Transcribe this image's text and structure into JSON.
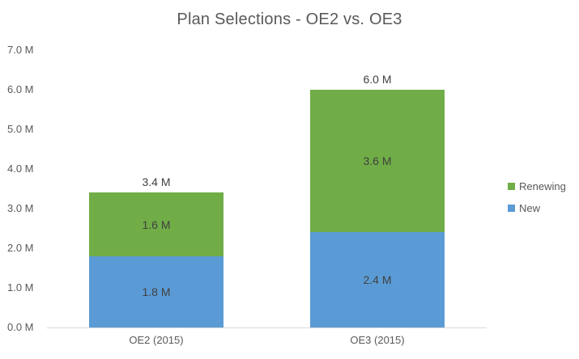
{
  "chart_data": {
    "type": "bar",
    "variant": "stacked-column",
    "title": "Plan Selections - OE2 vs. OE3",
    "categories": [
      "OE2 (2015)",
      "OE3 (2015)"
    ],
    "series": [
      {
        "name": "New",
        "color": "#5B9BD5",
        "values": [
          1.8,
          2.4
        ],
        "data_labels": [
          "1.8 M",
          "2.4 M"
        ]
      },
      {
        "name": "Renewing",
        "color": "#70AD47",
        "values": [
          1.6,
          3.6
        ],
        "data_labels": [
          "1.6 M",
          "3.6 M"
        ]
      }
    ],
    "totals": [
      3.4,
      6.0
    ],
    "total_labels": [
      "3.4 M",
      "6.0 M"
    ],
    "xlabel": "",
    "ylabel": "",
    "ylim": [
      0,
      7
    ],
    "y_ticks": [
      {
        "value": 7,
        "label": "7.0 M"
      },
      {
        "value": 6,
        "label": "6.0 M"
      },
      {
        "value": 5,
        "label": "5.0 M"
      },
      {
        "value": 4,
        "label": "4.0 M"
      },
      {
        "value": 3,
        "label": "3.0 M"
      },
      {
        "value": 2,
        "label": "2.0 M"
      },
      {
        "value": 1,
        "label": "1.0 M"
      },
      {
        "value": 0,
        "label": "0.0 M"
      }
    ],
    "grid": false,
    "legend": {
      "position": "right",
      "entries": [
        {
          "label": "Renewing",
          "color": "#70AD47"
        },
        {
          "label": "New",
          "color": "#5B9BD5"
        }
      ]
    },
    "colors": {
      "title_text": "#595959",
      "axis_text": "#595959",
      "data_label_text": "#404040",
      "axis_line": "#D9D9D9",
      "background": "#FFFFFF"
    }
  }
}
